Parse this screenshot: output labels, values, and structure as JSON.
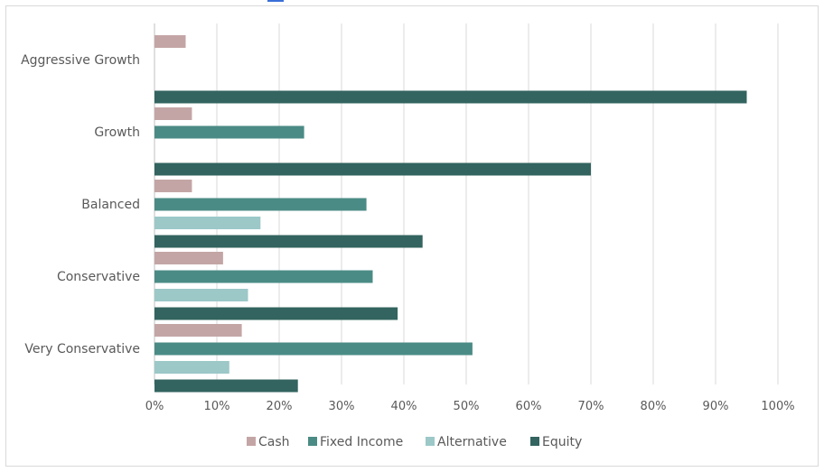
{
  "chart_data": {
    "type": "bar",
    "orientation": "horizontal",
    "title": "",
    "xlabel": "",
    "ylabel": "",
    "xlim": [
      0,
      100
    ],
    "x_ticks": [
      "0%",
      "10%",
      "20%",
      "30%",
      "40%",
      "50%",
      "60%",
      "70%",
      "80%",
      "90%",
      "100%"
    ],
    "grid": true,
    "legend_position": "bottom",
    "categories": [
      "Aggressive Growth",
      "Growth",
      "Balanced",
      "Conservative",
      "Very Conservative"
    ],
    "series": [
      {
        "name": "Cash",
        "color": "#c4a5a5",
        "values": [
          5,
          6,
          6,
          11,
          14
        ]
      },
      {
        "name": "Fixed Income",
        "color": "#4b8b85",
        "values": [
          0,
          24,
          34,
          35,
          51
        ]
      },
      {
        "name": "Alternative",
        "color": "#9cc8c8",
        "values": [
          0,
          0,
          17,
          15,
          12
        ]
      },
      {
        "name": "Equity",
        "color": "#33645f",
        "values": [
          95,
          70,
          43,
          39,
          23
        ]
      }
    ]
  }
}
